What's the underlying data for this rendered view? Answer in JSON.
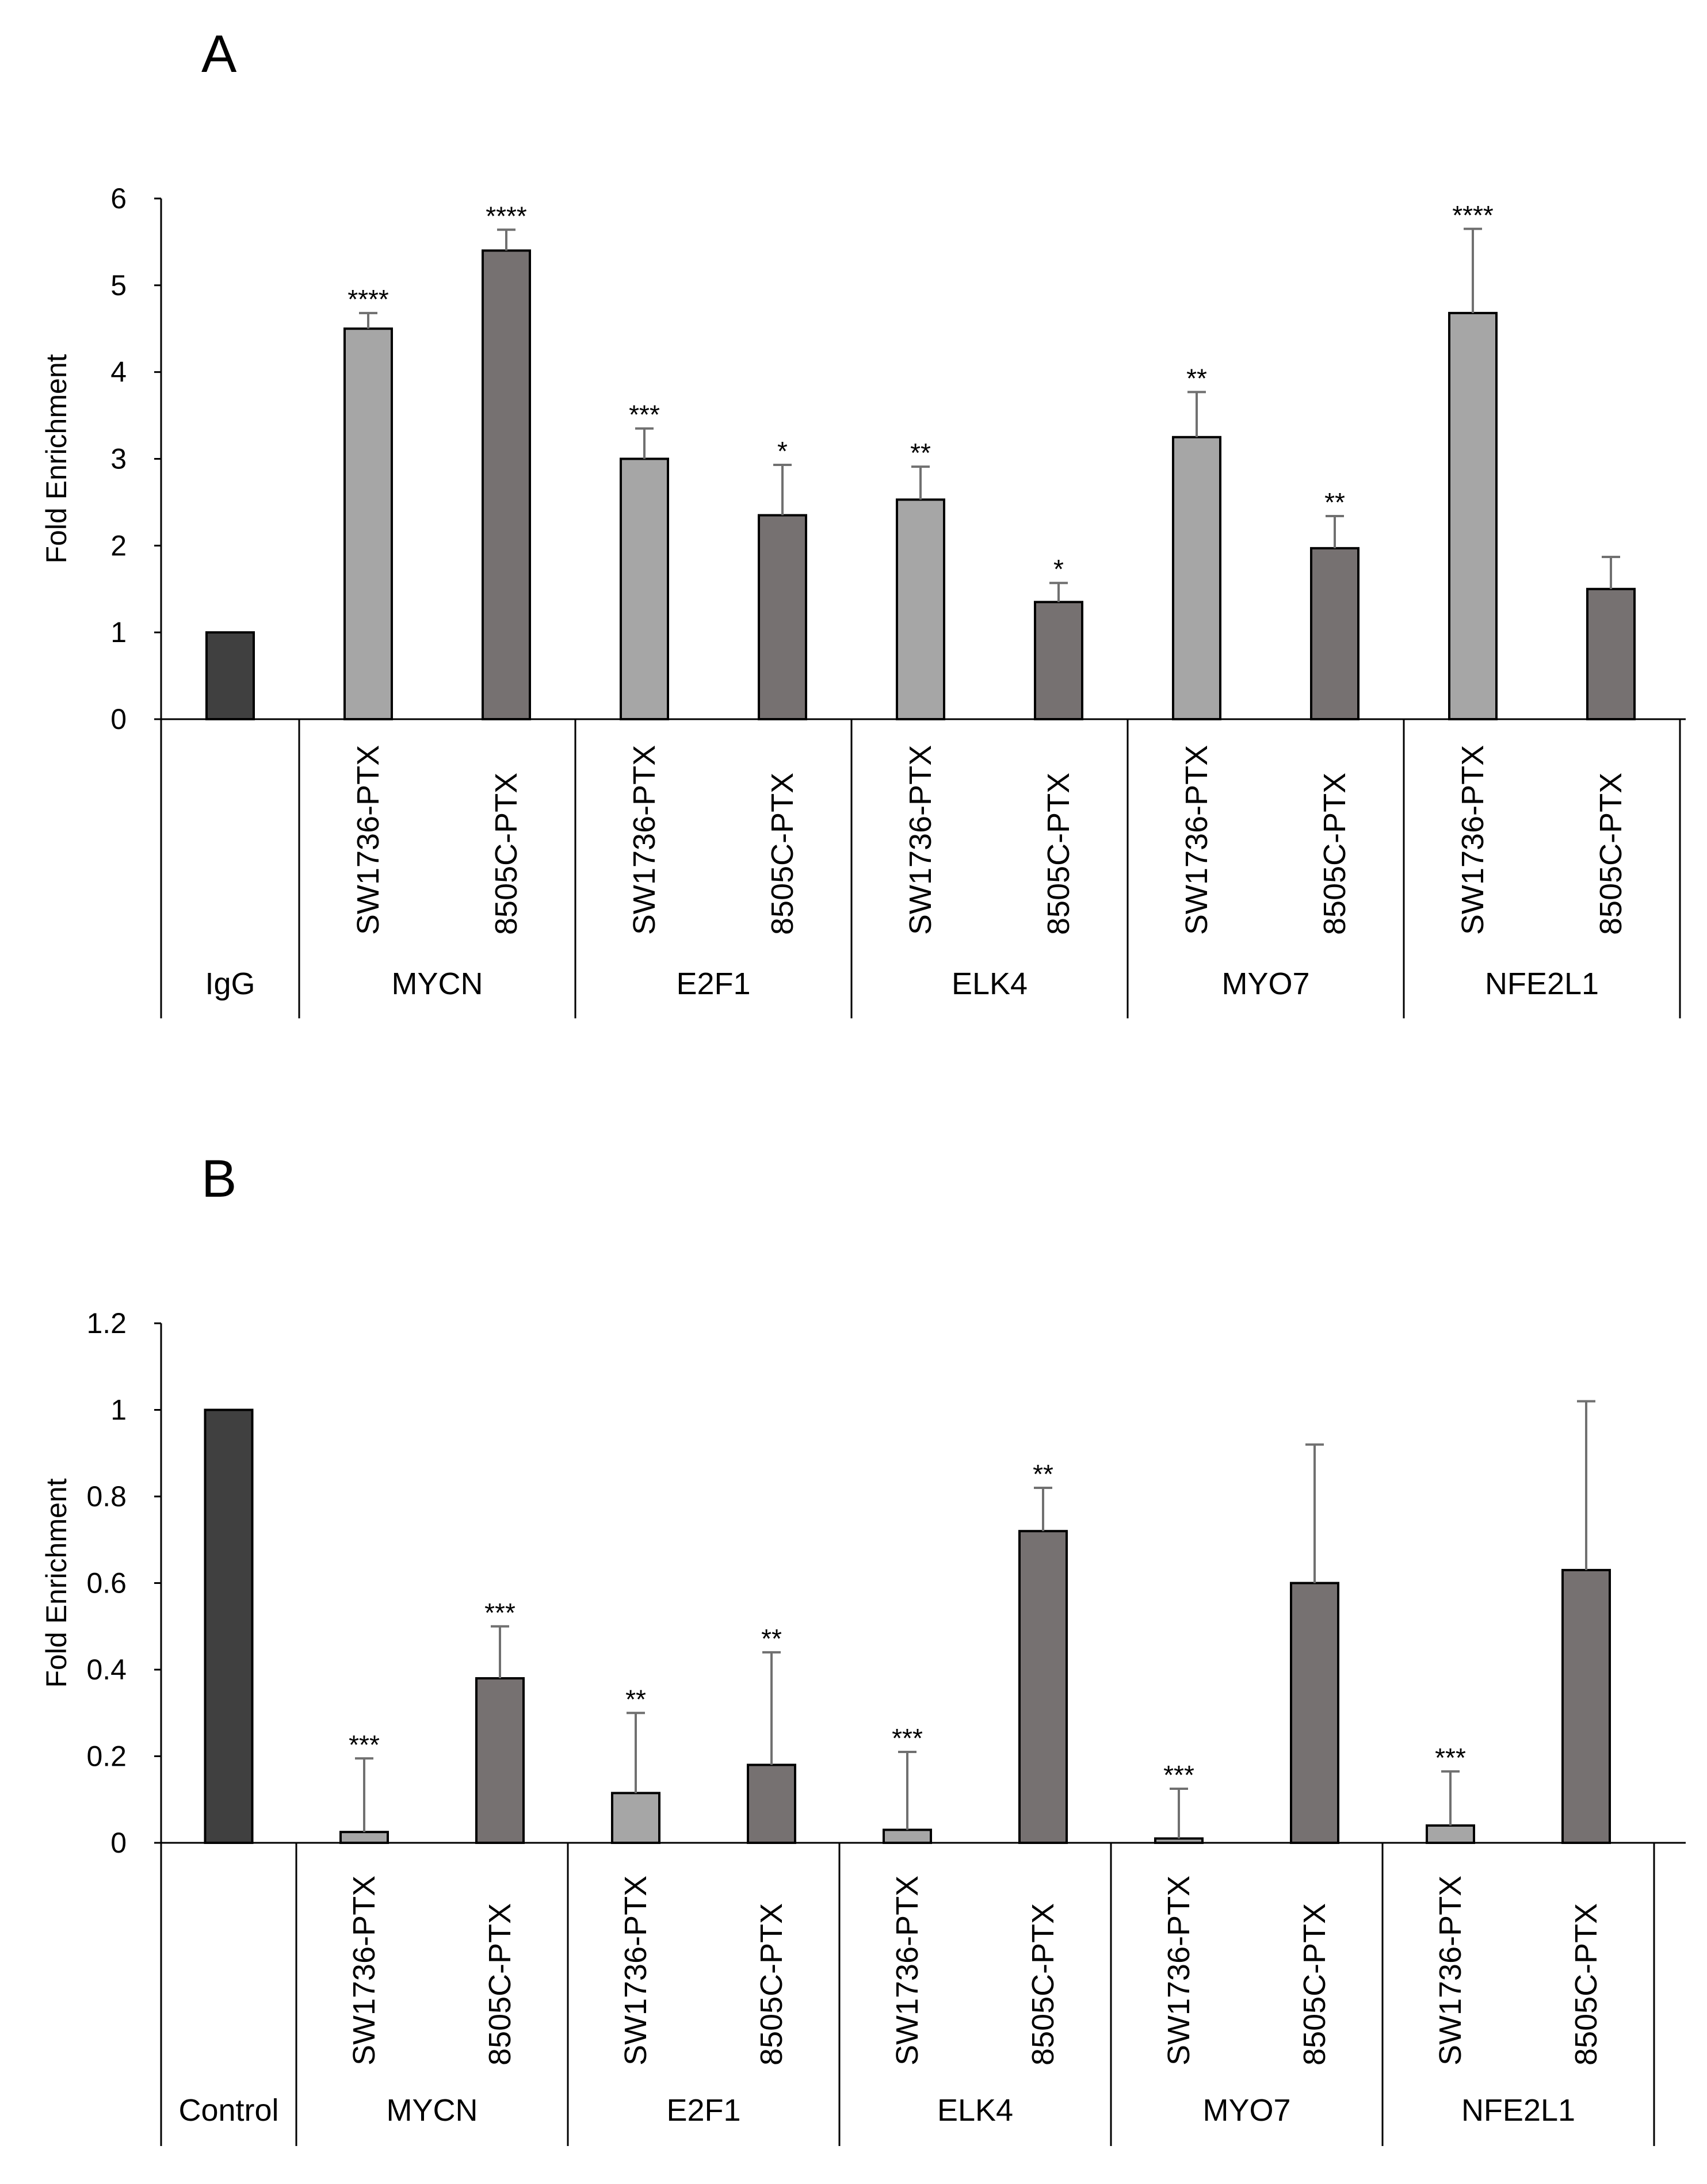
{
  "chart_data": [
    {
      "type": "bar",
      "panel_label": "A",
      "ylabel": "Fold Enrichment",
      "ylim": [
        0,
        6
      ],
      "yticks": [
        "0",
        "1",
        "2",
        "3",
        "4",
        "5",
        "6"
      ],
      "groups": [
        {
          "label": "IgG",
          "bars": [
            {
              "category": "",
              "value": 1.0,
              "error": 0.0,
              "significance": "",
              "color": "#404040"
            }
          ]
        },
        {
          "label": "MYCN",
          "bars": [
            {
              "category": "SW1736-PTX",
              "value": 4.5,
              "error": 0.18,
              "significance": "****",
              "color": "#a6a6a6"
            },
            {
              "category": "8505C-PTX",
              "value": 5.4,
              "error": 0.24,
              "significance": "****",
              "color": "#767171"
            }
          ]
        },
        {
          "label": "E2F1",
          "bars": [
            {
              "category": "SW1736-PTX",
              "value": 3.0,
              "error": 0.35,
              "significance": "***",
              "color": "#a6a6a6"
            },
            {
              "category": "8505C-PTX",
              "value": 2.35,
              "error": 0.58,
              "significance": "*",
              "color": "#767171"
            }
          ]
        },
        {
          "label": "ELK4",
          "bars": [
            {
              "category": "SW1736-PTX",
              "value": 2.53,
              "error": 0.38,
              "significance": "**",
              "color": "#a6a6a6"
            },
            {
              "category": "8505C-PTX",
              "value": 1.35,
              "error": 0.22,
              "significance": "*",
              "color": "#767171"
            }
          ]
        },
        {
          "label": "MYO7",
          "bars": [
            {
              "category": "SW1736-PTX",
              "value": 3.25,
              "error": 0.52,
              "significance": "**",
              "color": "#a6a6a6"
            },
            {
              "category": "8505C-PTX",
              "value": 1.97,
              "error": 0.37,
              "significance": "**",
              "color": "#767171"
            }
          ]
        },
        {
          "label": "NFE2L1",
          "bars": [
            {
              "category": "SW1736-PTX",
              "value": 4.68,
              "error": 0.97,
              "significance": "****",
              "color": "#a6a6a6"
            },
            {
              "category": "8505C-PTX",
              "value": 1.5,
              "error": 0.37,
              "significance": "",
              "color": "#767171"
            }
          ]
        }
      ]
    },
    {
      "type": "bar",
      "panel_label": "B",
      "ylabel": "Fold Enrichment",
      "ylim": [
        0,
        1.2
      ],
      "yticks": [
        "0",
        "0.2",
        "0.4",
        "0.6",
        "0.8",
        "1",
        "1.2"
      ],
      "groups": [
        {
          "label": "Control",
          "bars": [
            {
              "category": "",
              "value": 1.0,
              "error": 0.0,
              "significance": "",
              "color": "#404040"
            }
          ]
        },
        {
          "label": "MYCN",
          "bars": [
            {
              "category": "SW1736-PTX",
              "value": 0.025,
              "error": 0.17,
              "significance": "***",
              "color": "#a6a6a6"
            },
            {
              "category": "8505C-PTX",
              "value": 0.38,
              "error": 0.12,
              "significance": "***",
              "color": "#767171"
            }
          ]
        },
        {
          "label": "E2F1",
          "bars": [
            {
              "category": "SW1736-PTX",
              "value": 0.115,
              "error": 0.185,
              "significance": "**",
              "color": "#a6a6a6"
            },
            {
              "category": "8505C-PTX",
              "value": 0.18,
              "error": 0.26,
              "significance": "**",
              "color": "#767171"
            }
          ]
        },
        {
          "label": "ELK4",
          "bars": [
            {
              "category": "SW1736-PTX",
              "value": 0.03,
              "error": 0.18,
              "significance": "***",
              "color": "#a6a6a6"
            },
            {
              "category": "8505C-PTX",
              "value": 0.72,
              "error": 0.1,
              "significance": "**",
              "color": "#767171"
            }
          ]
        },
        {
          "label": "MYO7",
          "bars": [
            {
              "category": "SW1736-PTX",
              "value": 0.01,
              "error": 0.115,
              "significance": "***",
              "color": "#a6a6a6"
            },
            {
              "category": "8505C-PTX",
              "value": 0.6,
              "error": 0.32,
              "significance": "",
              "color": "#767171"
            }
          ]
        },
        {
          "label": "NFE2L1",
          "bars": [
            {
              "category": "SW1736-PTX",
              "value": 0.04,
              "error": 0.125,
              "significance": "***",
              "color": "#a6a6a6"
            },
            {
              "category": "8505C-PTX",
              "value": 0.63,
              "error": 0.39,
              "significance": "",
              "color": "#767171"
            }
          ]
        }
      ]
    }
  ]
}
